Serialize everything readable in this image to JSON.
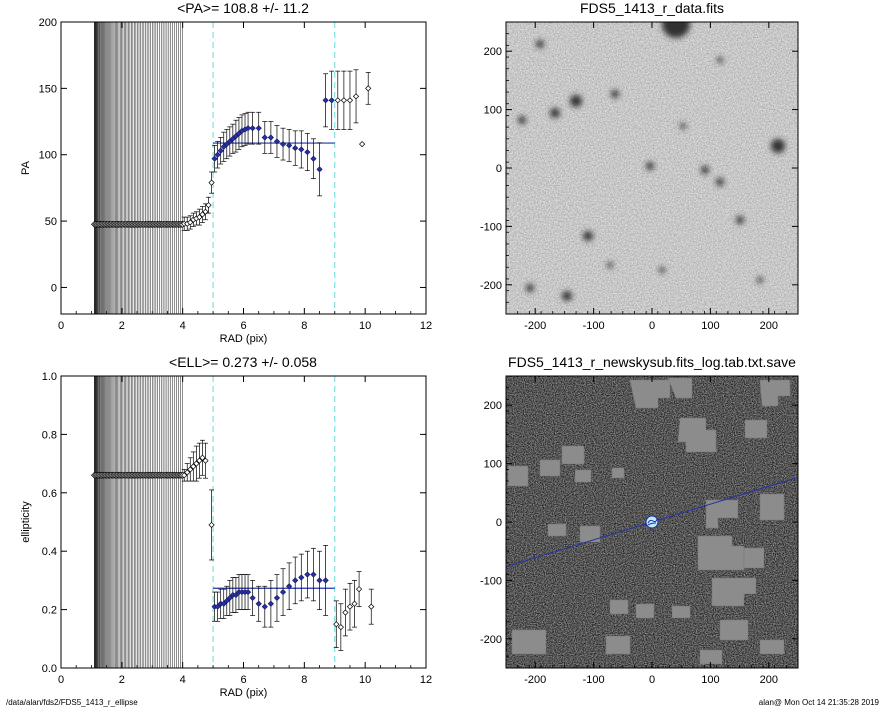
{
  "footer": {
    "path": "/data/alan/fds2/FDS5_1413_r_ellipse",
    "stamp": "alan@  Mon Oct 14 21:35:28 2019"
  },
  "colors": {
    "fit_line": "#2233aa",
    "markers": "#2233aa",
    "guide_lines": "#66dddd",
    "axes": "#000000"
  },
  "chart_data": [
    {
      "type": "scatter",
      "title": "<PA>= 108.8 +/-  11.2",
      "xlabel": "RAD (pix)",
      "ylabel": "PA",
      "xlim": [
        0,
        12
      ],
      "ylim": [
        -20,
        200
      ],
      "xticks": [
        "0",
        "2",
        "4",
        "6",
        "8",
        "10",
        "12"
      ],
      "yticks": [
        "0",
        "50",
        "100",
        "150",
        "200"
      ],
      "dashed_vlines_x": [
        5.0,
        9.0
      ],
      "fit_line": {
        "x": [
          5.0,
          9.0
        ],
        "y": 108.8
      },
      "dense_band": {
        "x_range": [
          1.1,
          4.0
        ],
        "y": 47.5,
        "ylim_span": [
          -20,
          200
        ]
      },
      "points": [
        {
          "x": 4.05,
          "y": 48,
          "err": 5
        },
        {
          "x": 4.15,
          "y": 48,
          "err": 5
        },
        {
          "x": 4.25,
          "y": 49,
          "err": 5
        },
        {
          "x": 4.35,
          "y": 51,
          "err": 5
        },
        {
          "x": 4.45,
          "y": 52,
          "err": 5
        },
        {
          "x": 4.55,
          "y": 53,
          "err": 6
        },
        {
          "x": 4.65,
          "y": 55,
          "err": 6
        },
        {
          "x": 4.75,
          "y": 57,
          "err": 6
        },
        {
          "x": 4.85,
          "y": 62,
          "err": 6
        },
        {
          "x": 4.95,
          "y": 79,
          "err": 8
        },
        {
          "x": 5.05,
          "y": 97,
          "err": 10
        },
        {
          "x": 5.15,
          "y": 100,
          "err": 10
        },
        {
          "x": 5.25,
          "y": 103,
          "err": 10
        },
        {
          "x": 5.35,
          "y": 106,
          "err": 11
        },
        {
          "x": 5.45,
          "y": 108,
          "err": 11
        },
        {
          "x": 5.55,
          "y": 110,
          "err": 11
        },
        {
          "x": 5.65,
          "y": 112,
          "err": 11
        },
        {
          "x": 5.75,
          "y": 114,
          "err": 12
        },
        {
          "x": 5.85,
          "y": 116,
          "err": 12
        },
        {
          "x": 5.95,
          "y": 118,
          "err": 12
        },
        {
          "x": 6.05,
          "y": 119,
          "err": 12
        },
        {
          "x": 6.15,
          "y": 120,
          "err": 12
        },
        {
          "x": 6.3,
          "y": 120,
          "err": 12
        },
        {
          "x": 6.5,
          "y": 120,
          "err": 12
        },
        {
          "x": 6.7,
          "y": 113,
          "err": 12
        },
        {
          "x": 6.9,
          "y": 113,
          "err": 12
        },
        {
          "x": 7.1,
          "y": 110,
          "err": 12
        },
        {
          "x": 7.3,
          "y": 108,
          "err": 12
        },
        {
          "x": 7.5,
          "y": 107,
          "err": 12
        },
        {
          "x": 7.7,
          "y": 105,
          "err": 13
        },
        {
          "x": 7.9,
          "y": 104,
          "err": 14
        },
        {
          "x": 8.1,
          "y": 102,
          "err": 14
        },
        {
          "x": 8.3,
          "y": 97,
          "err": 15
        },
        {
          "x": 8.5,
          "y": 89,
          "err": 20
        },
        {
          "x": 8.7,
          "y": 141,
          "err": 20
        },
        {
          "x": 8.9,
          "y": 141,
          "err": 22
        },
        {
          "x": 9.1,
          "y": 141,
          "err": 22
        },
        {
          "x": 9.3,
          "y": 141,
          "err": 22
        },
        {
          "x": 9.5,
          "y": 141,
          "err": 22
        },
        {
          "x": 9.7,
          "y": 144,
          "err": 20
        },
        {
          "x": 9.9,
          "y": 108,
          "err": 0
        },
        {
          "x": 10.1,
          "y": 150,
          "err": 12
        }
      ]
    },
    {
      "type": "image",
      "title": "FDS5_1413_r_data.fits",
      "xlim": [
        -250,
        250
      ],
      "ylim": [
        -250,
        250
      ],
      "xticks": [
        "-200",
        "-100",
        "0",
        "100",
        "200"
      ],
      "yticks": [
        "-200",
        "-100",
        "0",
        "100",
        "200"
      ],
      "style": "light-gray noise with dark blobs (stars)"
    },
    {
      "type": "scatter",
      "title": "<ELL>= 0.273 +/-  0.058",
      "xlabel": "RAD (pix)",
      "ylabel": "ellipticity",
      "xlim": [
        0,
        12
      ],
      "ylim": [
        0,
        1
      ],
      "xticks": [
        "0",
        "2",
        "4",
        "6",
        "8",
        "10",
        "12"
      ],
      "yticks": [
        "0.0",
        "0.2",
        "0.4",
        "0.6",
        "0.8",
        "1.0"
      ],
      "dashed_vlines_x": [
        5.0,
        9.0
      ],
      "fit_line": {
        "x": [
          5.0,
          9.0
        ],
        "y": 0.273
      },
      "dense_band": {
        "x_range": [
          1.1,
          4.0
        ],
        "y": 0.66,
        "ylim_span": [
          0,
          1
        ]
      },
      "points": [
        {
          "x": 4.05,
          "y": 0.66,
          "err": 0.02
        },
        {
          "x": 4.15,
          "y": 0.67,
          "err": 0.03
        },
        {
          "x": 4.25,
          "y": 0.68,
          "err": 0.04
        },
        {
          "x": 4.35,
          "y": 0.69,
          "err": 0.05
        },
        {
          "x": 4.45,
          "y": 0.7,
          "err": 0.06
        },
        {
          "x": 4.55,
          "y": 0.71,
          "err": 0.06
        },
        {
          "x": 4.65,
          "y": 0.72,
          "err": 0.06
        },
        {
          "x": 4.75,
          "y": 0.71,
          "err": 0.06
        },
        {
          "x": 4.95,
          "y": 0.49,
          "err": 0.12
        },
        {
          "x": 5.05,
          "y": 0.21,
          "err": 0.05
        },
        {
          "x": 5.15,
          "y": 0.21,
          "err": 0.05
        },
        {
          "x": 5.25,
          "y": 0.22,
          "err": 0.05
        },
        {
          "x": 5.35,
          "y": 0.22,
          "err": 0.05
        },
        {
          "x": 5.45,
          "y": 0.23,
          "err": 0.05
        },
        {
          "x": 5.55,
          "y": 0.24,
          "err": 0.06
        },
        {
          "x": 5.65,
          "y": 0.25,
          "err": 0.06
        },
        {
          "x": 5.75,
          "y": 0.25,
          "err": 0.06
        },
        {
          "x": 5.85,
          "y": 0.26,
          "err": 0.06
        },
        {
          "x": 5.95,
          "y": 0.26,
          "err": 0.06
        },
        {
          "x": 6.05,
          "y": 0.26,
          "err": 0.06
        },
        {
          "x": 6.15,
          "y": 0.26,
          "err": 0.06
        },
        {
          "x": 6.3,
          "y": 0.24,
          "err": 0.06
        },
        {
          "x": 6.5,
          "y": 0.22,
          "err": 0.06
        },
        {
          "x": 6.7,
          "y": 0.21,
          "err": 0.07
        },
        {
          "x": 6.9,
          "y": 0.22,
          "err": 0.08
        },
        {
          "x": 7.1,
          "y": 0.24,
          "err": 0.08
        },
        {
          "x": 7.3,
          "y": 0.26,
          "err": 0.08
        },
        {
          "x": 7.5,
          "y": 0.28,
          "err": 0.08
        },
        {
          "x": 7.7,
          "y": 0.3,
          "err": 0.08
        },
        {
          "x": 7.9,
          "y": 0.31,
          "err": 0.08
        },
        {
          "x": 8.1,
          "y": 0.32,
          "err": 0.08
        },
        {
          "x": 8.3,
          "y": 0.32,
          "err": 0.09
        },
        {
          "x": 8.5,
          "y": 0.3,
          "err": 0.1
        },
        {
          "x": 8.7,
          "y": 0.3,
          "err": 0.12
        },
        {
          "x": 9.05,
          "y": 0.15,
          "err": 0.08
        },
        {
          "x": 9.2,
          "y": 0.14,
          "err": 0.08
        },
        {
          "x": 9.35,
          "y": 0.19,
          "err": 0.08
        },
        {
          "x": 9.5,
          "y": 0.21,
          "err": 0.08
        },
        {
          "x": 9.65,
          "y": 0.22,
          "err": 0.08
        },
        {
          "x": 9.8,
          "y": 0.27,
          "err": 0.06
        },
        {
          "x": 10.2,
          "y": 0.21,
          "err": 0.06
        }
      ]
    },
    {
      "type": "image",
      "title": "FDS5_1413_r_newskysub.fits_log.tab.txt.save",
      "xlim": [
        -250,
        250
      ],
      "ylim": [
        -250,
        250
      ],
      "xticks": [
        "-200",
        "-100",
        "0",
        "100",
        "200"
      ],
      "yticks": [
        "-200",
        "-100",
        "0",
        "100",
        "200"
      ],
      "style": "gray noise with flat masked patches, blue position-angle line through center",
      "pa_line_deg": 17
    }
  ]
}
